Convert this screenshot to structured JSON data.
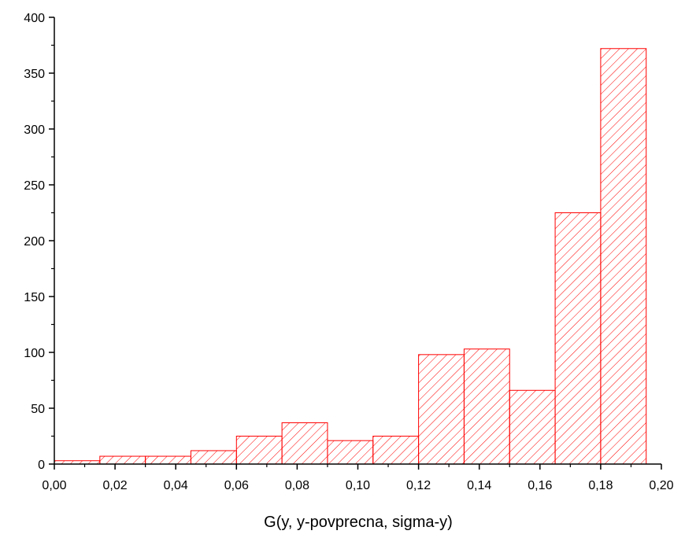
{
  "chart_data": {
    "type": "bar",
    "subtype": "histogram",
    "title": "",
    "xlabel": "G(y, y-povprecna, sigma-y)",
    "ylabel": "",
    "bin_width": 0.015,
    "bins": [
      {
        "x0": 0.0,
        "x1": 0.015,
        "value": 3
      },
      {
        "x0": 0.015,
        "x1": 0.03,
        "value": 7
      },
      {
        "x0": 0.03,
        "x1": 0.045,
        "value": 7
      },
      {
        "x0": 0.045,
        "x1": 0.06,
        "value": 12
      },
      {
        "x0": 0.06,
        "x1": 0.075,
        "value": 25
      },
      {
        "x0": 0.075,
        "x1": 0.09,
        "value": 37
      },
      {
        "x0": 0.09,
        "x1": 0.105,
        "value": 21
      },
      {
        "x0": 0.105,
        "x1": 0.12,
        "value": 25
      },
      {
        "x0": 0.12,
        "x1": 0.135,
        "value": 98
      },
      {
        "x0": 0.135,
        "x1": 0.15,
        "value": 103
      },
      {
        "x0": 0.15,
        "x1": 0.165,
        "value": 66
      },
      {
        "x0": 0.165,
        "x1": 0.18,
        "value": 225
      },
      {
        "x0": 0.18,
        "x1": 0.195,
        "value": 372
      }
    ],
    "xlim": [
      0.0,
      0.2
    ],
    "ylim": [
      0,
      400
    ],
    "x_ticks": [
      0.0,
      0.02,
      0.04,
      0.06,
      0.08,
      0.1,
      0.12,
      0.14,
      0.16,
      0.18,
      0.2
    ],
    "x_tick_labels": [
      "0,00",
      "0,02",
      "0,04",
      "0,06",
      "0,08",
      "0,10",
      "0,12",
      "0,14",
      "0,16",
      "0,18",
      "0,20"
    ],
    "y_ticks": [
      0,
      50,
      100,
      150,
      200,
      250,
      300,
      350,
      400
    ],
    "y_tick_labels": [
      "0",
      "50",
      "100",
      "150",
      "200",
      "250",
      "300",
      "350",
      "400"
    ],
    "grid": false,
    "legend": "none",
    "bar_color": "#ff0000",
    "bar_fill_pattern": "diagonal-hatch"
  }
}
